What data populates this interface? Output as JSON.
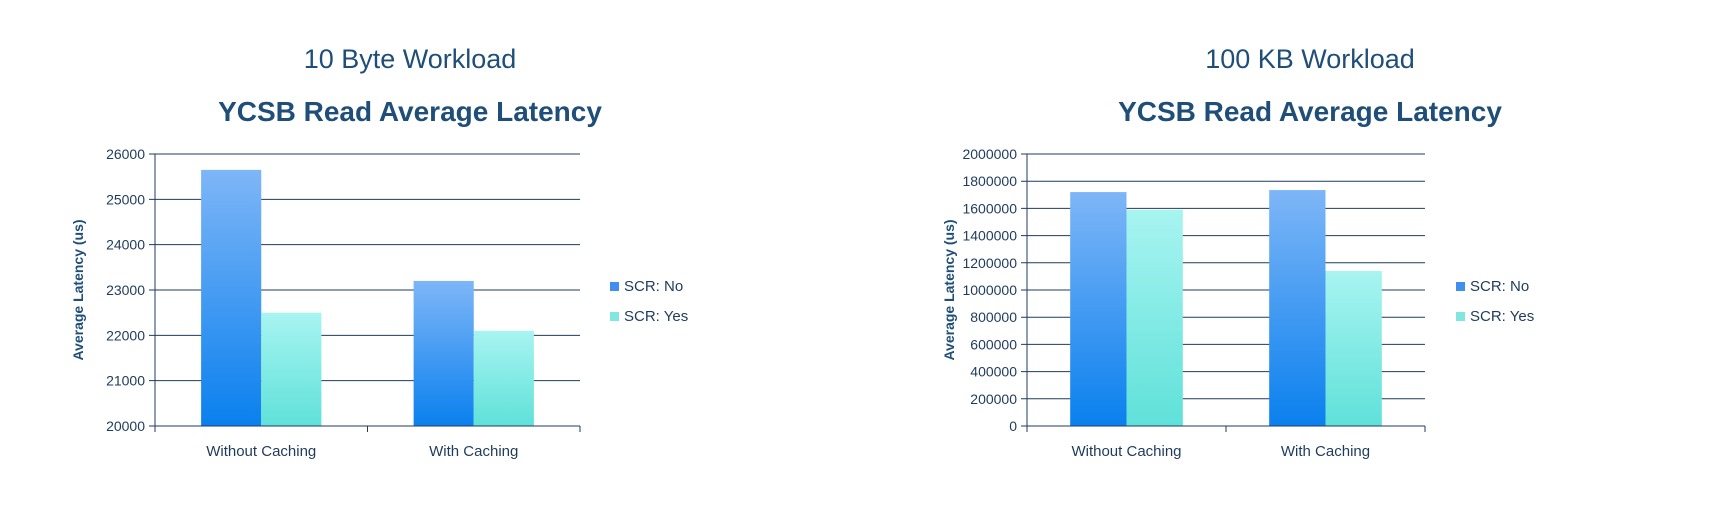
{
  "chart_data": [
    {
      "type": "bar",
      "subtitle": "10 Byte Workload",
      "title": "YCSB Read Average Latency",
      "ylabel": "Average Latency (us)",
      "xlabel": "",
      "categories": [
        "Without Caching",
        "With Caching"
      ],
      "ylim": [
        20000,
        26000
      ],
      "yticks": [
        20000,
        21000,
        22000,
        23000,
        24000,
        25000,
        26000
      ],
      "grid": true,
      "legend_position": "right",
      "series": [
        {
          "name": "SCR: No",
          "values": [
            25650,
            23200
          ],
          "color": "#3f8ef0"
        },
        {
          "name": "SCR: Yes",
          "values": [
            22500,
            22100
          ],
          "color": "#7ee8e0"
        }
      ]
    },
    {
      "type": "bar",
      "subtitle": "100 KB Workload",
      "title": "YCSB Read Average Latency",
      "ylabel": "Average Latency (us)",
      "xlabel": "",
      "categories": [
        "Without Caching",
        "With Caching"
      ],
      "ylim": [
        0,
        2000000
      ],
      "yticks": [
        0,
        200000,
        400000,
        600000,
        800000,
        1000000,
        1200000,
        1400000,
        1600000,
        1800000,
        2000000
      ],
      "grid": true,
      "legend_position": "right",
      "series": [
        {
          "name": "SCR: No",
          "values": [
            1720000,
            1735000
          ],
          "color": "#3f8ef0"
        },
        {
          "name": "SCR: Yes",
          "values": [
            1590000,
            1140000
          ],
          "color": "#7ee8e0"
        }
      ]
    }
  ]
}
